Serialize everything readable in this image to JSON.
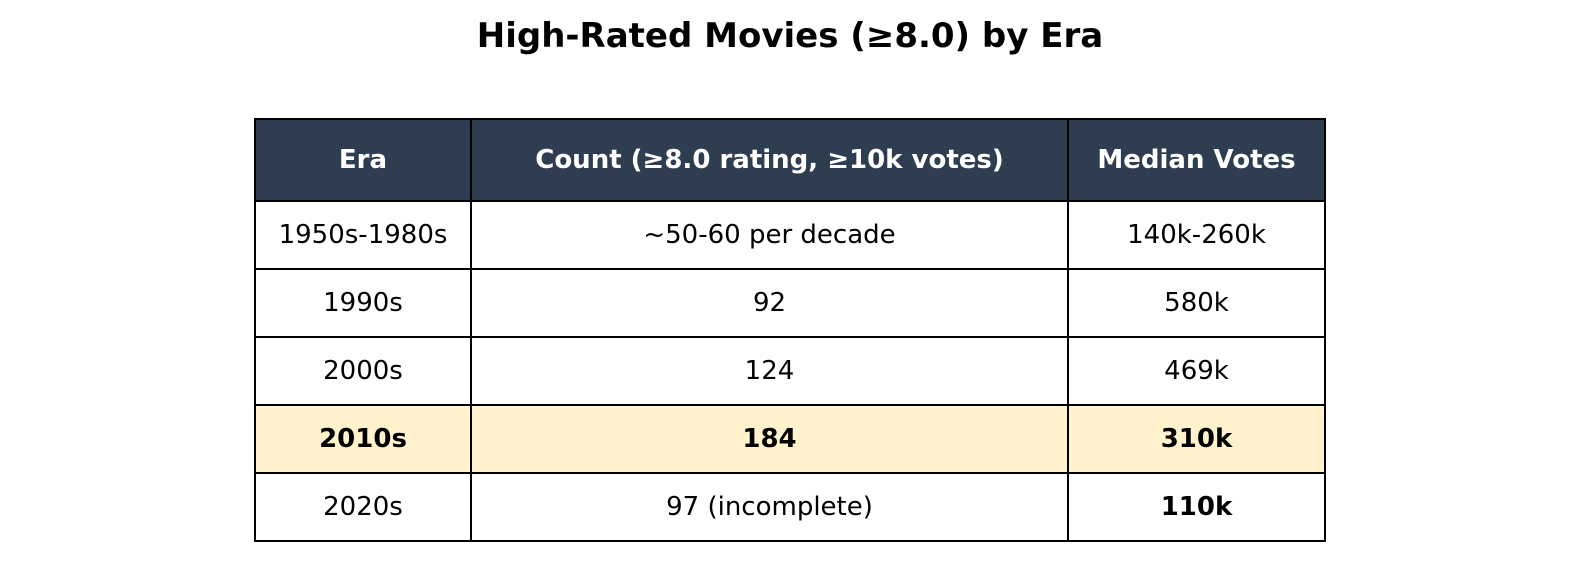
{
  "chart_data": {
    "type": "table",
    "title": "High-Rated Movies (≥8.0) by Era",
    "columns": [
      "Era",
      "Count (≥8.0 rating, ≥10k votes)",
      "Median Votes"
    ],
    "rows": [
      {
        "cells": [
          "1950s-1980s",
          "~50-60 per decade",
          "140k-260k"
        ],
        "highlight": false,
        "bold": [
          false,
          false,
          false
        ]
      },
      {
        "cells": [
          "1990s",
          "92",
          "580k"
        ],
        "highlight": false,
        "bold": [
          false,
          false,
          false
        ]
      },
      {
        "cells": [
          "2000s",
          "124",
          "469k"
        ],
        "highlight": false,
        "bold": [
          false,
          false,
          false
        ]
      },
      {
        "cells": [
          "2010s",
          "184",
          "310k"
        ],
        "highlight": true,
        "bold": [
          true,
          true,
          true
        ]
      },
      {
        "cells": [
          "2020s",
          "97 (incomplete)",
          "110k"
        ],
        "highlight": false,
        "bold": [
          false,
          false,
          true
        ]
      }
    ],
    "colors": {
      "header_background": "#2e3e50",
      "header_text": "#ffffff",
      "highlight_row": "#fff2cc",
      "row_background": "#ffffff",
      "border": "#000000"
    }
  }
}
